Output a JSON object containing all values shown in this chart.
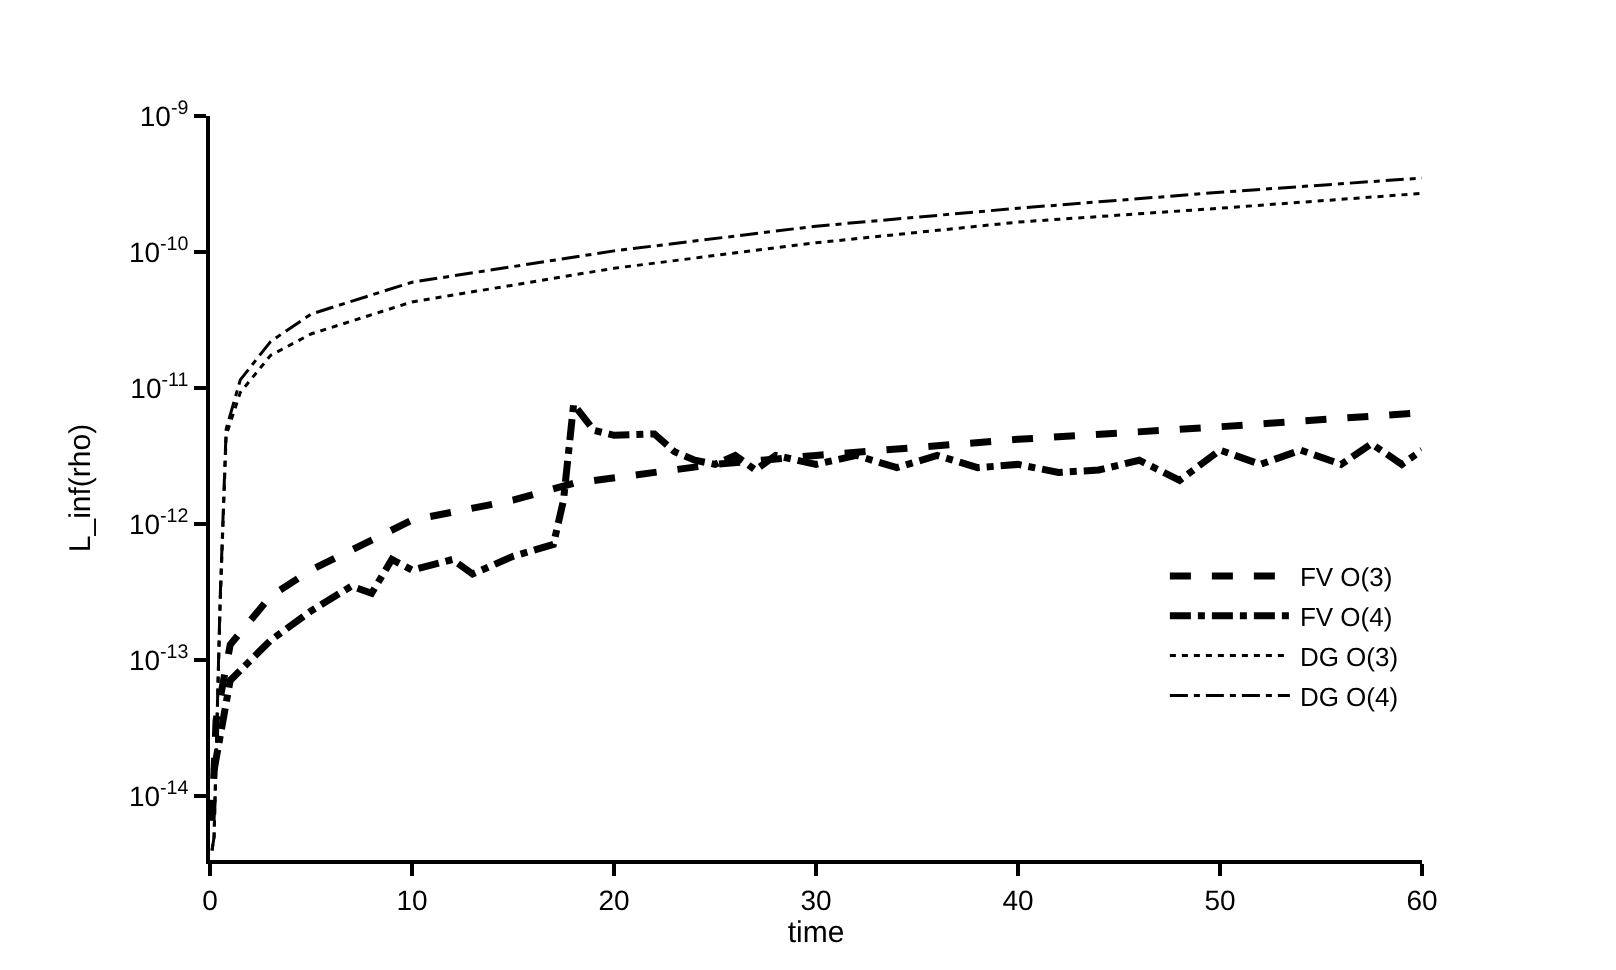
{
  "chart_data": {
    "type": "line",
    "xlabel": "time",
    "ylabel": "L_inf(rho)",
    "log": "y",
    "grid": false,
    "legend": "bottom right",
    "marker": "none",
    "xlim": [
      0,
      60
    ],
    "xticks": [
      0,
      10,
      20,
      30,
      40,
      50,
      60
    ],
    "ylim": [
      3.4e-15,
      1e-09
    ],
    "yticks": [
      {
        "value": 1e-14,
        "label": "10$^{-14}$"
      },
      {
        "value": 1e-13,
        "label": "10$^{-13}$"
      },
      {
        "value": 1e-12,
        "label": "10$^{-12}$"
      },
      {
        "value": 1e-11,
        "label": "10$^{-11}$"
      },
      {
        "value": 1e-10,
        "label": "10$^{-10}$"
      },
      {
        "value": 1e-09,
        "label": "10$^{-9}$"
      }
    ],
    "series": [
      {
        "name": "FV O(3)",
        "color": "#000000",
        "line_style": "dashed",
        "x": [
          0.1,
          0.3,
          1,
          3,
          5,
          10,
          15,
          18,
          25,
          30,
          40,
          50,
          60
        ],
        "values": [
          6.6e-15,
          3.6e-14,
          1.3e-13,
          2.95e-13,
          4.6e-13,
          1.07e-12,
          1.5e-12,
          2e-12,
          2.75e-12,
          3.2e-12,
          4.2e-12,
          5.2e-12,
          6.6e-12
        ]
      },
      {
        "name": "FV O(4)",
        "color": "#000000",
        "line_style": "dashdot",
        "x": [
          0.2,
          1,
          3,
          5,
          7,
          8,
          9,
          10,
          12,
          13,
          15,
          17,
          17.5,
          18,
          19,
          20,
          22,
          23,
          24,
          25,
          26,
          27,
          28,
          30,
          32,
          34,
          36,
          38,
          40,
          42,
          44,
          46,
          48,
          50,
          52,
          54,
          56,
          57.5,
          59,
          60
        ],
        "values": [
          1.55e-14,
          7.1e-14,
          1.4e-13,
          2.3e-13,
          3.5e-13,
          3.1e-13,
          5.5e-13,
          4.6e-13,
          5.5e-13,
          4.3e-13,
          5.8e-13,
          7.1e-13,
          1.5e-12,
          7.6e-12,
          4.9e-12,
          4.5e-12,
          4.6e-12,
          3.4e-12,
          2.95e-12,
          2.75e-12,
          3.2e-12,
          2.5e-12,
          3.2e-12,
          2.75e-12,
          3.2e-12,
          2.6e-12,
          3.2e-12,
          2.6e-12,
          2.75e-12,
          2.4e-12,
          2.5e-12,
          2.95e-12,
          2.1e-12,
          3.5e-12,
          2.75e-12,
          3.5e-12,
          2.75e-12,
          3.9e-12,
          2.75e-12,
          3.5e-12
        ]
      },
      {
        "name": "DG O(3)",
        "color": "#000000",
        "line_style": "dotted",
        "x": [
          0.1,
          0.2,
          0.5,
          0.8,
          1.5,
          3,
          5,
          10,
          20,
          30,
          40,
          50,
          60
        ],
        "values": [
          4e-15,
          5e-15,
          2.5e-13,
          4.5e-12,
          9.3e-12,
          1.74e-11,
          2.5e-11,
          4.3e-11,
          7.6e-11,
          1.17e-10,
          1.66e-10,
          2.1e-10,
          2.7e-10
        ]
      },
      {
        "name": "DG O(4)",
        "color": "#000000",
        "line_style": "dashdot",
        "x": [
          0.1,
          0.2,
          0.5,
          0.8,
          1.5,
          3,
          5,
          10,
          20,
          30,
          40,
          50,
          60
        ],
        "values": [
          4e-15,
          5e-15,
          2.75e-13,
          5e-12,
          1.15e-11,
          2.2e-11,
          3.5e-11,
          6e-11,
          1.02e-10,
          1.55e-10,
          2.1e-10,
          2.75e-10,
          3.5e-10
        ]
      }
    ]
  }
}
